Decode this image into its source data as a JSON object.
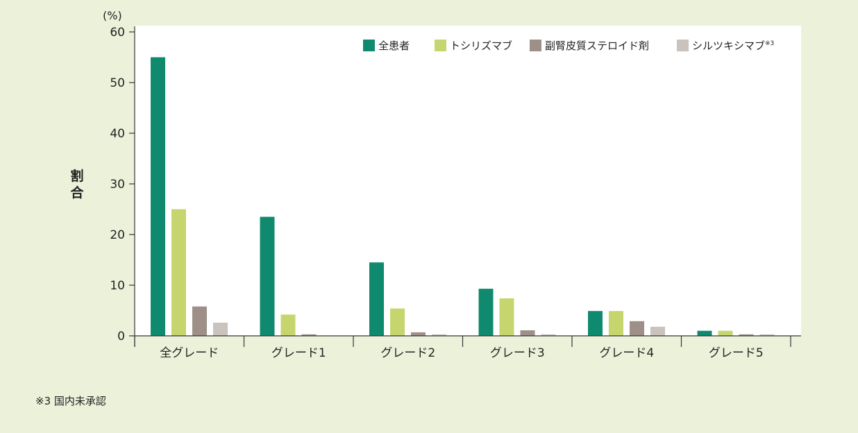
{
  "chart_data": {
    "type": "bar",
    "categories": [
      "全グレード",
      "グレード1",
      "グレード2",
      "グレード3",
      "グレード4",
      "グレード5"
    ],
    "series": [
      {
        "name": "全患者",
        "color": "#0f8a6e",
        "values": [
          55,
          23.5,
          14.5,
          9.3,
          4.9,
          1.0
        ]
      },
      {
        "name": "トシリズマブ",
        "color": "#c6d56d",
        "values": [
          25,
          4.2,
          5.4,
          7.4,
          4.9,
          1.0
        ]
      },
      {
        "name": "副腎皮質ステロイド剤",
        "color": "#9e9088",
        "values": [
          5.8,
          0.3,
          0.7,
          1.1,
          2.9,
          0.3
        ]
      },
      {
        "name": "シルツキシマブ",
        "name_superscript": "※3",
        "color": "#c9c2bd",
        "values": [
          2.6,
          0,
          0.3,
          0.3,
          1.8,
          0.3
        ]
      }
    ],
    "ylabel": "割合",
    "yunit": "(%)",
    "ylim": [
      0,
      60
    ],
    "yticks": [
      0,
      10,
      20,
      30,
      40,
      50,
      60
    ],
    "grid": false,
    "legend_position": "top-right"
  },
  "footnote": "※3 国内未承認"
}
